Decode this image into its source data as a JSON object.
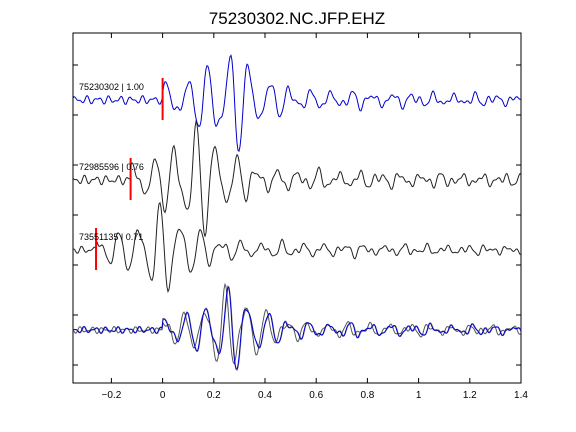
{
  "chart_data": {
    "type": "line",
    "title": "75230302.NC.JFP.EHZ",
    "xlabel": "",
    "ylabel": "",
    "xlim": [
      -0.35,
      1.4
    ],
    "x_ticks": [
      -0.2,
      0,
      0.2,
      0.4,
      0.6,
      0.8,
      1,
      1.2,
      1.4
    ],
    "x_tick_labels": [
      "−0.2",
      "0",
      "0.2",
      "0.4",
      "0.6",
      "0.8",
      "1",
      "1.2",
      "1.4"
    ],
    "grid": false,
    "colors": {
      "primary": "#0000cc",
      "secondary": "#222222",
      "overlay_gray": "#888888",
      "pick": "#ff0000"
    },
    "traces": [
      {
        "label": "75230302 | 1.00",
        "pick_time": 0.0,
        "color": "#0000cc"
      },
      {
        "label": "72985596 | 0.76",
        "pick_time": -0.125,
        "color": "#222222"
      },
      {
        "label": "73551135 | 0.71",
        "pick_time": -0.26,
        "color": "#222222"
      }
    ],
    "overlay_series": [
      "#888888",
      "#555555",
      "#0000cc"
    ]
  }
}
